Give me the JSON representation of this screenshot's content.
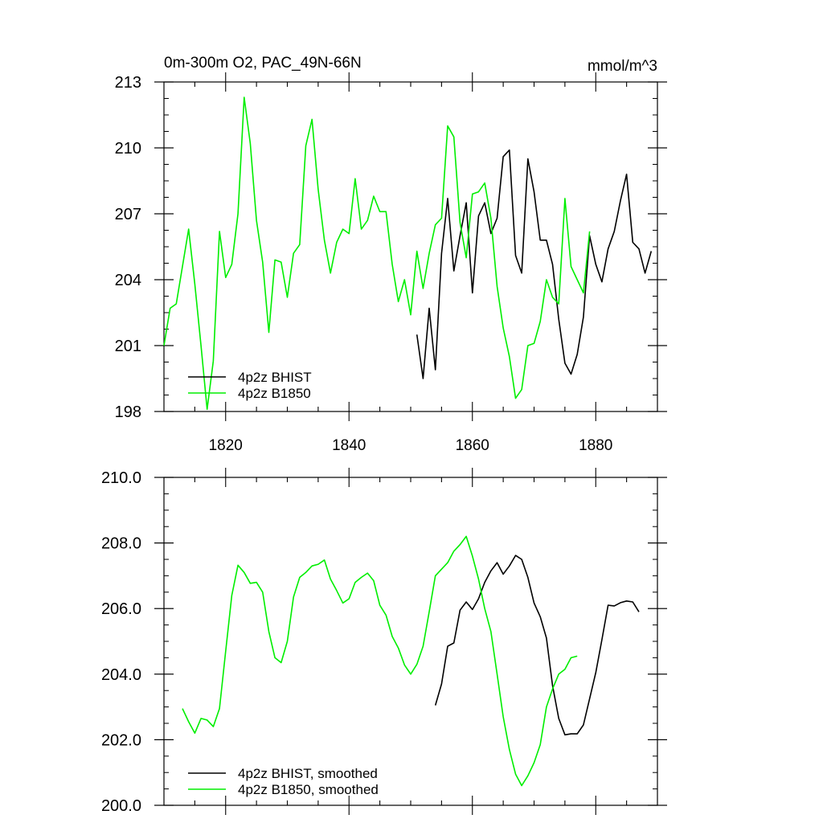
{
  "chart_data": [
    {
      "type": "line",
      "title": "0m-300m O2, PAC_49N-66N",
      "units": "mmol/m^3",
      "xlabel": "",
      "ylabel": "",
      "xlim": [
        1810,
        1890
      ],
      "ylim": [
        198,
        213
      ],
      "xticks": [
        1820,
        1840,
        1860,
        1880
      ],
      "xtick_labels": [
        "1820",
        "1840",
        "1860",
        "1880"
      ],
      "yticks": [
        198,
        201,
        204,
        207,
        210,
        213
      ],
      "ytick_labels": [
        "198",
        "201",
        "204",
        "207",
        "210",
        "213"
      ],
      "grid": false,
      "legend_position": "bottom-left",
      "series": [
        {
          "name": "4p2z BHIST",
          "color": "#000000",
          "x": [
            1851,
            1852,
            1853,
            1854,
            1855,
            1856,
            1857,
            1858,
            1859,
            1860,
            1861,
            1862,
            1863,
            1864,
            1865,
            1866,
            1867,
            1868,
            1869,
            1870,
            1871,
            1872,
            1873,
            1874,
            1875,
            1876,
            1877,
            1878,
            1879,
            1880,
            1881,
            1882,
            1883,
            1884,
            1885,
            1886,
            1887,
            1888,
            1889
          ],
          "values": [
            201.5,
            199.5,
            202.7,
            199.9,
            205.2,
            207.7,
            204.4,
            206.0,
            207.5,
            203.4,
            206.9,
            207.5,
            206.1,
            206.8,
            209.6,
            209.9,
            205.1,
            204.3,
            209.5,
            208.0,
            205.8,
            205.8,
            204.7,
            202.2,
            200.2,
            199.7,
            200.6,
            202.3,
            206.0,
            204.7,
            203.9,
            205.4,
            206.2,
            207.6,
            208.8,
            205.7,
            205.4,
            204.3,
            205.3
          ]
        },
        {
          "name": "4p2z B1850",
          "color": "#00ee00",
          "x": [
            1810,
            1811,
            1812,
            1813,
            1814,
            1815,
            1816,
            1817,
            1818,
            1819,
            1820,
            1821,
            1822,
            1823,
            1824,
            1825,
            1826,
            1827,
            1828,
            1829,
            1830,
            1831,
            1832,
            1833,
            1834,
            1835,
            1836,
            1837,
            1838,
            1839,
            1840,
            1841,
            1842,
            1843,
            1844,
            1845,
            1846,
            1847,
            1848,
            1849,
            1850,
            1851,
            1852,
            1853,
            1854,
            1855,
            1856,
            1857,
            1858,
            1859,
            1860,
            1861,
            1862,
            1863,
            1864,
            1865,
            1866,
            1867,
            1868,
            1869,
            1870,
            1871,
            1872,
            1873,
            1874,
            1875,
            1876,
            1877,
            1878,
            1879
          ],
          "values": [
            201.0,
            202.7,
            202.9,
            204.6,
            206.3,
            203.8,
            201.0,
            198.1,
            200.3,
            206.2,
            204.1,
            204.7,
            207.0,
            212.3,
            210.2,
            206.7,
            204.8,
            201.6,
            204.9,
            204.8,
            203.2,
            205.2,
            205.6,
            210.1,
            211.3,
            208.1,
            205.8,
            204.3,
            205.7,
            206.3,
            206.1,
            208.6,
            206.3,
            206.7,
            207.8,
            207.1,
            207.1,
            204.7,
            203.0,
            204.0,
            202.4,
            205.3,
            203.6,
            205.2,
            206.5,
            206.8,
            211.0,
            210.5,
            206.6,
            205.0,
            207.9,
            208.0,
            208.4,
            206.8,
            203.7,
            201.8,
            200.5,
            198.6,
            199.0,
            201.0,
            201.1,
            202.1,
            204.0,
            203.2,
            202.9,
            207.7,
            204.6,
            204.0,
            203.4,
            206.2
          ]
        }
      ]
    },
    {
      "type": "line",
      "title": "",
      "xlabel": "",
      "ylabel": "",
      "xlim": [
        1810,
        1890
      ],
      "ylim": [
        200.0,
        210.0
      ],
      "xticks": [
        1820,
        1840,
        1860,
        1880
      ],
      "yticks": [
        200.0,
        202.0,
        204.0,
        206.0,
        208.0,
        210.0
      ],
      "ytick_labels": [
        "200.0",
        "202.0",
        "204.0",
        "206.0",
        "208.0",
        "210.0"
      ],
      "grid": false,
      "legend_position": "bottom-left",
      "series": [
        {
          "name": "4p2z BHIST, smoothed",
          "color": "#000000",
          "x": [
            1854,
            1855,
            1856,
            1857,
            1858,
            1859,
            1860,
            1861,
            1862,
            1863,
            1864,
            1865,
            1866,
            1867,
            1868,
            1869,
            1870,
            1871,
            1872,
            1873,
            1874,
            1875,
            1876,
            1877,
            1878,
            1879,
            1880,
            1881,
            1882,
            1883,
            1884,
            1885,
            1886,
            1887
          ],
          "values": [
            203.05,
            203.7,
            204.85,
            204.95,
            205.95,
            206.2,
            205.97,
            206.3,
            206.8,
            207.15,
            207.4,
            207.05,
            207.3,
            207.62,
            207.5,
            206.95,
            206.17,
            205.75,
            205.1,
            203.65,
            202.65,
            202.15,
            202.18,
            202.18,
            202.45,
            203.25,
            204.05,
            205.05,
            206.1,
            206.08,
            206.18,
            206.23,
            206.2,
            205.9
          ]
        },
        {
          "name": "4p2z B1850, smoothed",
          "color": "#00ee00",
          "x": [
            1813,
            1814,
            1815,
            1816,
            1817,
            1818,
            1819,
            1820,
            1821,
            1822,
            1823,
            1824,
            1825,
            1826,
            1827,
            1828,
            1829,
            1830,
            1831,
            1832,
            1833,
            1834,
            1835,
            1836,
            1837,
            1838,
            1839,
            1840,
            1841,
            1842,
            1843,
            1844,
            1845,
            1846,
            1847,
            1848,
            1849,
            1850,
            1851,
            1852,
            1853,
            1854,
            1855,
            1856,
            1857,
            1858,
            1859,
            1860,
            1861,
            1862,
            1863,
            1864,
            1865,
            1866,
            1867,
            1868,
            1869,
            1870,
            1871,
            1872,
            1873,
            1874,
            1875,
            1876,
            1877
          ],
          "values": [
            202.95,
            202.55,
            202.2,
            202.65,
            202.6,
            202.4,
            202.95,
            204.7,
            206.4,
            207.32,
            207.1,
            206.77,
            206.8,
            206.5,
            205.3,
            204.5,
            204.35,
            205.0,
            206.35,
            206.95,
            207.1,
            207.3,
            207.35,
            207.48,
            206.9,
            206.55,
            206.17,
            206.3,
            206.8,
            206.95,
            207.08,
            206.85,
            206.1,
            205.8,
            205.15,
            204.8,
            204.28,
            204.0,
            204.3,
            204.85,
            205.9,
            207.0,
            207.2,
            207.4,
            207.75,
            207.95,
            208.2,
            207.6,
            206.9,
            206.0,
            205.3,
            204.0,
            202.7,
            201.7,
            200.95,
            200.6,
            200.9,
            201.3,
            201.85,
            203.0,
            203.55,
            204.0,
            204.15,
            204.5,
            204.55
          ]
        }
      ]
    }
  ]
}
